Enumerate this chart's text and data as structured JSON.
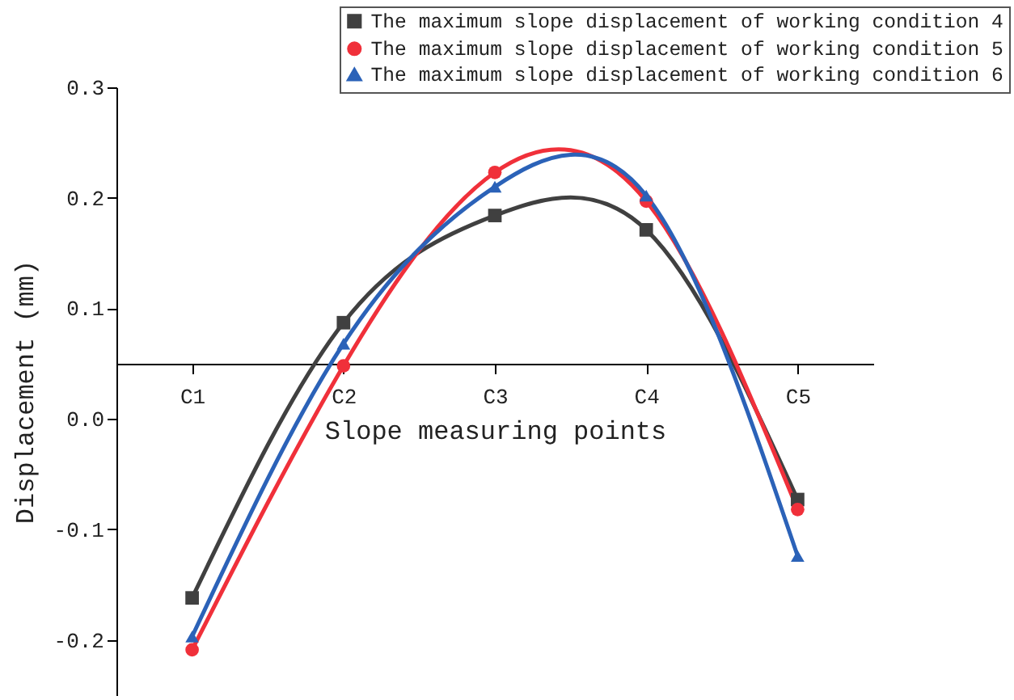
{
  "chart_data": {
    "type": "line",
    "xlabel": "Slope measuring points",
    "ylabel": "Displacement (mm)",
    "categories": [
      "C1",
      "C2",
      "C3",
      "C4",
      "C5"
    ],
    "series": [
      {
        "name": "The maximum slope displacement of working condition 4",
        "color": "#404040",
        "marker": "square",
        "values": [
          -0.162,
          0.087,
          0.184,
          0.171,
          -0.073
        ]
      },
      {
        "name": "The maximum slope displacement of working condition 5",
        "color": "#f0303a",
        "marker": "circle",
        "values": [
          -0.209,
          0.048,
          0.223,
          0.197,
          -0.082
        ]
      },
      {
        "name": "The maximum slope displacement of working condition 6",
        "color": "#2b62b8",
        "marker": "triangle",
        "values": [
          -0.197,
          0.068,
          0.21,
          0.202,
          -0.124
        ]
      }
    ],
    "ylim": [
      -0.25,
      0.3
    ],
    "yticks": [
      {
        "value": -0.2,
        "label": "-0.2"
      },
      {
        "value": -0.1,
        "label": "-0.1"
      },
      {
        "value": 0,
        "label": "0.0"
      },
      {
        "value": 0.1,
        "label": "0.1"
      },
      {
        "value": 0.2,
        "label": "0.2"
      },
      {
        "value": 0.3,
        "label": "0.3"
      }
    ],
    "legend": "top right",
    "grid": false,
    "line_style": "solid"
  }
}
